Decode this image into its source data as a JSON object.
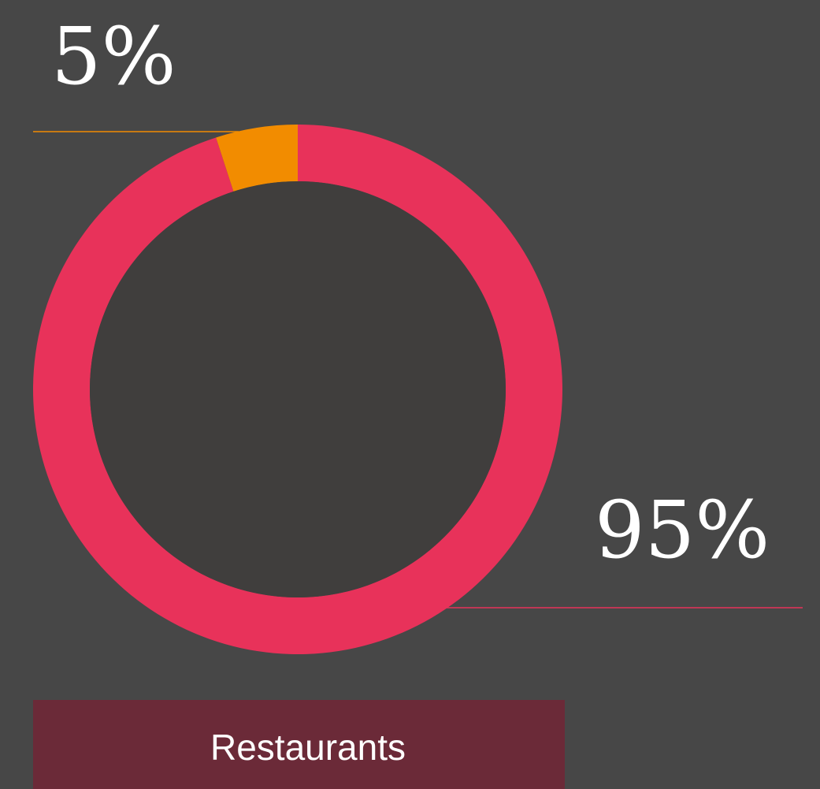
{
  "chart_data": {
    "type": "pie",
    "title": "Restaurants",
    "values": [
      95,
      5
    ],
    "value_labels": [
      "95%",
      "5%"
    ],
    "colors": [
      "#e8325a",
      "#f28c00"
    ],
    "hole": true
  }
}
